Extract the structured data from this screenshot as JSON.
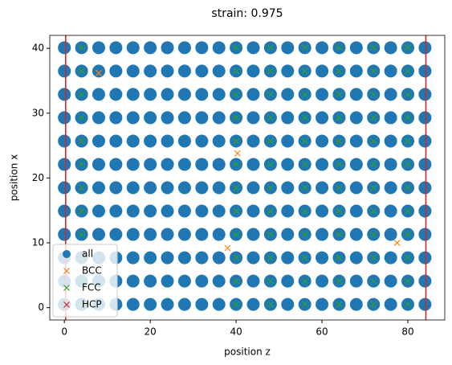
{
  "chart_data": {
    "type": "scatter",
    "title": "strain: 0.975",
    "x_label": "position z",
    "y_label": "position x",
    "xlim": [
      -3.4,
      88.6
    ],
    "ylim": [
      -1.9,
      42.0
    ],
    "xticks": [
      0,
      20,
      40,
      60,
      80
    ],
    "yticks": [
      0,
      10,
      20,
      30,
      40
    ],
    "grid": false,
    "legend": "lower left",
    "vlines": {
      "values": [
        0.3,
        84.2
      ],
      "color": "#d62728"
    },
    "series": [
      {
        "name": "all",
        "color": "#1f77b4",
        "marker": "o",
        "x": [
          0,
          4,
          8,
          12,
          16,
          20,
          24,
          28,
          32,
          36,
          40,
          44,
          48,
          52,
          56,
          60,
          64,
          68,
          72,
          76,
          80,
          84,
          0,
          4,
          8,
          12,
          16,
          20,
          24,
          28,
          32,
          36,
          40,
          44,
          48,
          52,
          56,
          60,
          64,
          68,
          72,
          76,
          80,
          84,
          0,
          4,
          8,
          12,
          16,
          20,
          24,
          28,
          32,
          36,
          40,
          44,
          48,
          52,
          56,
          60,
          64,
          68,
          72,
          76,
          80,
          84,
          0,
          4,
          8,
          12,
          16,
          20,
          24,
          28,
          32,
          36,
          40,
          44,
          48,
          52,
          56,
          60,
          64,
          68,
          72,
          76,
          80,
          84,
          0,
          4,
          8,
          12,
          16,
          20,
          24,
          28,
          32,
          36,
          40,
          44,
          48,
          52,
          56,
          60,
          64,
          68,
          72,
          76,
          80,
          84,
          0,
          4,
          8,
          12,
          16,
          20,
          24,
          28,
          32,
          36,
          40,
          44,
          48,
          52,
          56,
          60,
          64,
          68,
          72,
          76,
          80,
          84,
          0,
          4,
          8,
          12,
          16,
          20,
          24,
          28,
          32,
          36,
          40,
          44,
          48,
          52,
          56,
          60,
          64,
          68,
          72,
          76,
          80,
          84,
          0,
          4,
          8,
          12,
          16,
          20,
          24,
          28,
          32,
          36,
          40,
          44,
          48,
          52,
          56,
          60,
          64,
          68,
          72,
          76,
          80,
          84,
          0,
          4,
          8,
          12,
          16,
          20,
          24,
          28,
          32,
          36,
          40,
          44,
          48,
          52,
          56,
          60,
          64,
          68,
          72,
          76,
          80,
          84,
          0,
          4,
          8,
          12,
          16,
          20,
          24,
          28,
          32,
          36,
          40,
          44,
          48,
          52,
          56,
          60,
          64,
          68,
          72,
          76,
          80,
          84,
          0,
          4,
          8,
          12,
          16,
          20,
          24,
          28,
          32,
          36,
          40,
          44,
          48,
          52,
          56,
          60,
          64,
          68,
          72,
          76,
          80,
          84,
          0,
          4,
          8,
          12,
          16,
          20,
          24,
          28,
          32,
          36,
          40,
          44,
          48,
          52,
          56,
          60,
          64,
          68,
          72,
          76,
          80,
          84
        ],
        "values": [
          0.5,
          0.5,
          0.5,
          0.5,
          0.5,
          0.5,
          0.5,
          0.5,
          0.5,
          0.5,
          0.5,
          0.5,
          0.5,
          0.5,
          0.5,
          0.5,
          0.5,
          0.5,
          0.5,
          0.5,
          0.5,
          0.5,
          4.1,
          4.1,
          4.1,
          4.1,
          4.1,
          4.1,
          4.1,
          4.1,
          4.1,
          4.1,
          4.1,
          4.1,
          4.1,
          4.1,
          4.1,
          4.1,
          4.1,
          4.1,
          4.1,
          4.1,
          4.1,
          4.1,
          7.7,
          7.7,
          7.7,
          7.7,
          7.7,
          7.7,
          7.7,
          7.7,
          7.7,
          7.7,
          7.7,
          7.7,
          7.7,
          7.7,
          7.7,
          7.7,
          7.7,
          7.7,
          7.7,
          7.7,
          7.7,
          7.7,
          11.3,
          11.3,
          11.3,
          11.3,
          11.3,
          11.3,
          11.3,
          11.3,
          11.3,
          11.3,
          11.3,
          11.3,
          11.3,
          11.3,
          11.3,
          11.3,
          11.3,
          11.3,
          11.3,
          11.3,
          11.3,
          11.3,
          14.9,
          14.9,
          14.9,
          14.9,
          14.9,
          14.9,
          14.9,
          14.9,
          14.9,
          14.9,
          14.9,
          14.9,
          14.9,
          14.9,
          14.9,
          14.9,
          14.9,
          14.9,
          14.9,
          14.9,
          14.9,
          14.9,
          18.5,
          18.5,
          18.5,
          18.5,
          18.5,
          18.5,
          18.5,
          18.5,
          18.5,
          18.5,
          18.5,
          18.5,
          18.5,
          18.5,
          18.5,
          18.5,
          18.5,
          18.5,
          18.5,
          18.5,
          18.5,
          18.5,
          22.1,
          22.1,
          22.1,
          22.1,
          22.1,
          22.1,
          22.1,
          22.1,
          22.1,
          22.1,
          22.1,
          22.1,
          22.1,
          22.1,
          22.1,
          22.1,
          22.1,
          22.1,
          22.1,
          22.1,
          22.1,
          22.1,
          25.7,
          25.7,
          25.7,
          25.7,
          25.7,
          25.7,
          25.7,
          25.7,
          25.7,
          25.7,
          25.7,
          25.7,
          25.7,
          25.7,
          25.7,
          25.7,
          25.7,
          25.7,
          25.7,
          25.7,
          25.7,
          25.7,
          29.3,
          29.3,
          29.3,
          29.3,
          29.3,
          29.3,
          29.3,
          29.3,
          29.3,
          29.3,
          29.3,
          29.3,
          29.3,
          29.3,
          29.3,
          29.3,
          29.3,
          29.3,
          29.3,
          29.3,
          29.3,
          29.3,
          32.9,
          32.9,
          32.9,
          32.9,
          32.9,
          32.9,
          32.9,
          32.9,
          32.9,
          32.9,
          32.9,
          32.9,
          32.9,
          32.9,
          32.9,
          32.9,
          32.9,
          32.9,
          32.9,
          32.9,
          32.9,
          32.9,
          36.5,
          36.5,
          36.5,
          36.5,
          36.5,
          36.5,
          36.5,
          36.5,
          36.5,
          36.5,
          36.5,
          36.5,
          36.5,
          36.5,
          36.5,
          36.5,
          36.5,
          36.5,
          36.5,
          36.5,
          36.5,
          36.5,
          40.1,
          40.1,
          40.1,
          40.1,
          40.1,
          40.1,
          40.1,
          40.1,
          40.1,
          40.1,
          40.1,
          40.1,
          40.1,
          40.1,
          40.1,
          40.1,
          40.1,
          40.1,
          40.1,
          40.1,
          40.1,
          40.1
        ]
      },
      {
        "name": "BCC",
        "color": "#ff7f0e",
        "marker": "x",
        "x": [
          8,
          40.3,
          77.5,
          38
        ],
        "values": [
          36.2,
          23.8,
          10,
          9.2
        ]
      },
      {
        "name": "FCC",
        "color": "#2ca02c",
        "marker": "x",
        "x": [
          4,
          40,
          48,
          56,
          64,
          72,
          80,
          4,
          40,
          48,
          56,
          64,
          72,
          80,
          4,
          40,
          48,
          56,
          64,
          72,
          80,
          4,
          40,
          48,
          56,
          64,
          72,
          80,
          4,
          40,
          48,
          56,
          64,
          72,
          80,
          4,
          40,
          48,
          56,
          64,
          72,
          80,
          4,
          40,
          48,
          56,
          64,
          72,
          80,
          4,
          40,
          48,
          56,
          64,
          72,
          80,
          4,
          40,
          48,
          56,
          64,
          72,
          80,
          4,
          40,
          48,
          56,
          64,
          72,
          80,
          4,
          40,
          48,
          56,
          64,
          72,
          80,
          4,
          40,
          48,
          56,
          64,
          72,
          80
        ],
        "values": [
          0.5,
          0.5,
          0.5,
          0.5,
          0.5,
          0.5,
          0.5,
          4.1,
          4.1,
          4.1,
          4.1,
          4.1,
          4.1,
          4.1,
          7.7,
          7.7,
          7.7,
          7.7,
          7.7,
          7.7,
          7.7,
          11.3,
          11.3,
          11.3,
          11.3,
          11.3,
          11.3,
          11.3,
          14.9,
          14.9,
          14.9,
          14.9,
          14.9,
          14.9,
          14.9,
          18.5,
          18.5,
          18.5,
          18.5,
          18.5,
          18.5,
          18.5,
          22.1,
          22.1,
          22.1,
          22.1,
          22.1,
          22.1,
          22.1,
          25.7,
          25.7,
          25.7,
          25.7,
          25.7,
          25.7,
          25.7,
          29.3,
          29.3,
          29.3,
          29.3,
          29.3,
          29.3,
          29.3,
          32.9,
          32.9,
          32.9,
          32.9,
          32.9,
          32.9,
          32.9,
          36.5,
          36.5,
          36.5,
          36.5,
          36.5,
          36.5,
          36.5,
          40.1,
          40.1,
          40.1,
          40.1,
          40.1,
          40.1,
          40.1
        ]
      },
      {
        "name": "HCP",
        "color": "#d62728",
        "marker": "x",
        "x": [],
        "values": []
      }
    ]
  }
}
